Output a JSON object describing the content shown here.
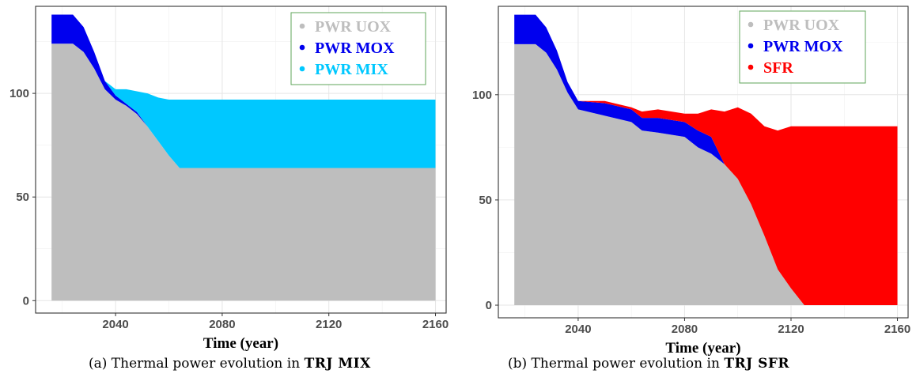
{
  "captions": {
    "a": {
      "prefix": "(a) Thermal power evolution in",
      "bold": "TRJ MIX"
    },
    "b": {
      "prefix": "(b) Thermal power evolution in",
      "bold": "TRJ SFR"
    }
  },
  "chart_data": [
    {
      "type": "area",
      "stacked": true,
      "title": "",
      "xlabel": "Time (year)",
      "ylabel": "",
      "xlim": [
        2010,
        2164
      ],
      "ylim": [
        -6,
        142
      ],
      "xticks": [
        2040,
        2080,
        2120,
        2160
      ],
      "yticks": [
        0,
        50,
        100
      ],
      "grid": true,
      "legend_position": "top-right",
      "x": [
        2016,
        2024,
        2028,
        2032,
        2036,
        2040,
        2044,
        2048,
        2052,
        2056,
        2060,
        2064,
        2068,
        2080,
        2100,
        2120,
        2140,
        2160
      ],
      "series": [
        {
          "name": "PWR UOX",
          "color": "#bebebe",
          "values": [
            124,
            124,
            120,
            112,
            102,
            97,
            94,
            90,
            84,
            77,
            70,
            64,
            64,
            64,
            64,
            64,
            64,
            64
          ]
        },
        {
          "name": "PWR MOX",
          "color": "#0000ee",
          "values": [
            14,
            14,
            12,
            8,
            4,
            2,
            1,
            1,
            0,
            0,
            0,
            0,
            0,
            0,
            0,
            0,
            0,
            0
          ]
        },
        {
          "name": "PWR MIX",
          "color": "#00c8ff",
          "values": [
            0,
            0,
            0,
            0,
            0,
            3,
            7,
            10,
            16,
            21,
            27,
            33,
            33,
            33,
            33,
            33,
            33,
            33
          ]
        }
      ]
    },
    {
      "type": "area",
      "stacked": true,
      "title": "",
      "xlabel": "Time (year)",
      "ylabel": "",
      "xlim": [
        2010,
        2164
      ],
      "ylim": [
        -6,
        142
      ],
      "xticks": [
        2040,
        2080,
        2120,
        2160
      ],
      "yticks": [
        0,
        50,
        100
      ],
      "grid": true,
      "legend_position": "top-right",
      "x": [
        2016,
        2024,
        2028,
        2032,
        2036,
        2040,
        2050,
        2060,
        2064,
        2070,
        2080,
        2085,
        2090,
        2095,
        2100,
        2105,
        2110,
        2115,
        2120,
        2125,
        2130,
        2140,
        2160
      ],
      "series": [
        {
          "name": "PWR UOX",
          "color": "#bebebe",
          "values": [
            124,
            124,
            120,
            112,
            101,
            93,
            90,
            87,
            83,
            82,
            80,
            75,
            72,
            67,
            60,
            48,
            33,
            17,
            8,
            0,
            0,
            0,
            0
          ]
        },
        {
          "name": "PWR MOX",
          "color": "#0000ee",
          "values": [
            14,
            14,
            12,
            9,
            5,
            4,
            6,
            6,
            6,
            7,
            7,
            8,
            8,
            0,
            0,
            0,
            0,
            0,
            0,
            0,
            0,
            0,
            0
          ]
        },
        {
          "name": "SFR",
          "color": "#ff0000",
          "values": [
            0,
            0,
            0,
            0,
            0,
            0,
            1,
            1,
            3,
            4,
            4,
            8,
            13,
            25,
            34,
            43,
            52,
            66,
            77,
            85,
            85,
            85,
            85
          ]
        }
      ]
    }
  ]
}
